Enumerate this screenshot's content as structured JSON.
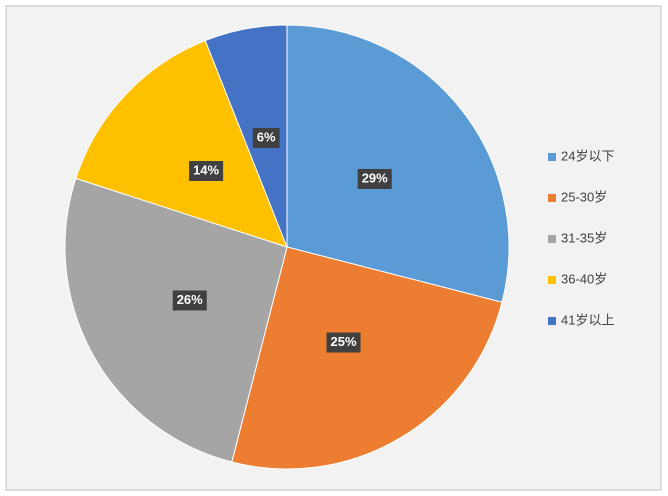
{
  "chart_data": {
    "type": "pie",
    "categories": [
      "24岁以下",
      "25-30岁",
      "31-35岁",
      "36-40岁",
      "41岁以上"
    ],
    "values": [
      29,
      25,
      26,
      14,
      6
    ],
    "value_labels": [
      "29%",
      "25%",
      "26%",
      "14%",
      "6%"
    ],
    "colors": [
      "#5b9bd5",
      "#ed7d31",
      "#a5a5a5",
      "#ffc000",
      "#4472c4"
    ],
    "legend": "right"
  }
}
